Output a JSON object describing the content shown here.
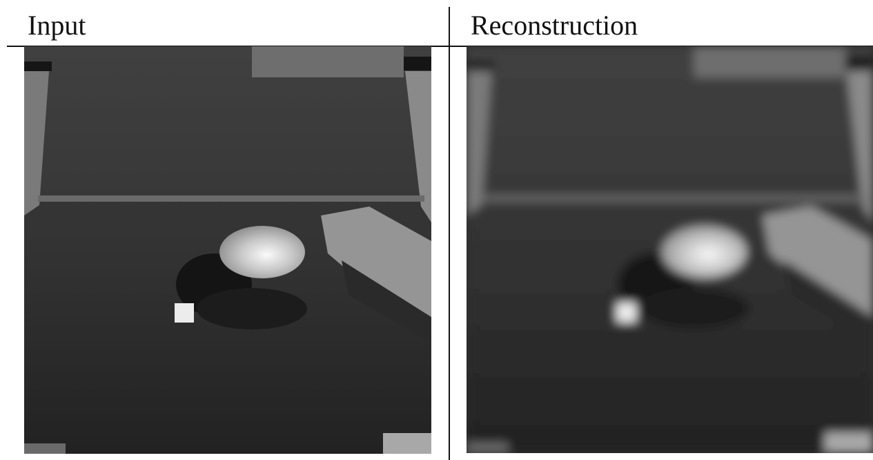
{
  "panels": [
    {
      "title": "Input"
    },
    {
      "title": "Reconstruction"
    }
  ]
}
